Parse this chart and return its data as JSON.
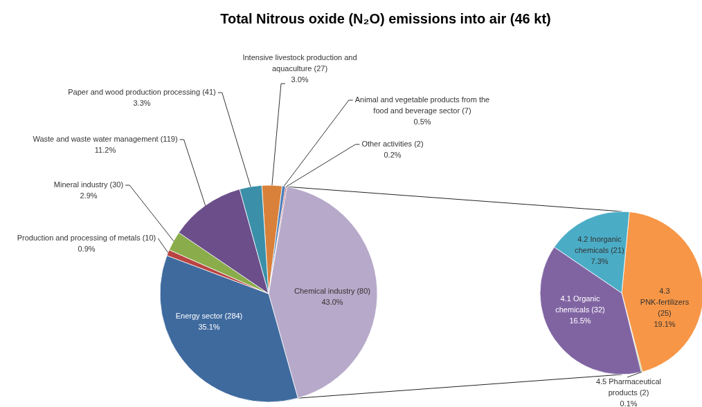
{
  "chart_data": [
    {
      "type": "pie",
      "title": "Total Nitrous oxide (N₂O) emissions into air (46 kt)",
      "categories": [
        "Intensive livestock production and aquaculture (27)",
        "Animal and vegetable products from the food and beverage sector (7)",
        "Other activities (2)",
        "Chemical industry (80)",
        "Energy sector (284)",
        "Production and processing of metals (10)",
        "Mineral industry (30)",
        "Waste and waste water management (119)",
        "Paper and wood production processing (41)"
      ],
      "values": [
        3.0,
        0.5,
        0.2,
        43.0,
        35.1,
        0.9,
        2.9,
        11.2,
        3.3
      ],
      "value_labels": [
        "3.0%",
        "0.5%",
        "0.2%",
        "43.0%",
        "35.1%",
        "0.9%",
        "2.9%",
        "11.2%",
        "3.3%"
      ],
      "colors": [
        "#d9813a",
        "#4a7ebb",
        "#c0504d",
        "#b7a9c9",
        "#3f6a9e",
        "#b94441",
        "#8aac4a",
        "#6b4e8a",
        "#3b8fa8"
      ]
    },
    {
      "type": "pie",
      "categories": [
        "4.3 PNK-fertilizers (25)",
        "4.5 Pharmaceutical products (2)",
        "4.1 Organic chemicals (32)",
        "4.2 Inorganic chemicals (21)"
      ],
      "values": [
        19.1,
        0.1,
        16.5,
        7.3
      ],
      "value_labels": [
        "19.1%",
        "0.1%",
        "16.5%",
        "7.3%"
      ],
      "colors": [
        "#f79646",
        "#9bbb59",
        "#8064a2",
        "#4bacc6"
      ]
    }
  ]
}
